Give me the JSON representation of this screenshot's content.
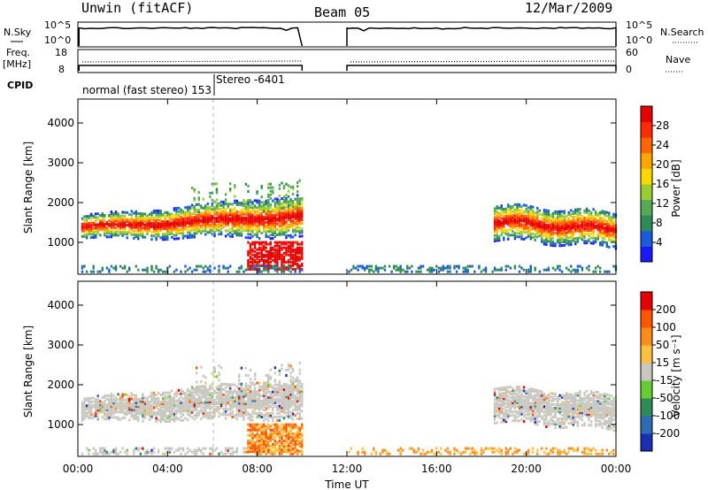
{
  "header": {
    "title_left": "Unwin (fitACF)",
    "title_center": "Beam 05",
    "title_right": "12/Mar/2009"
  },
  "strip": {
    "nsky_label": "N.Sky",
    "nsky_ticks": [
      "10^5",
      "10^0"
    ],
    "nsearch_label": "N.Search",
    "nsearch_ticks": [
      "10^5",
      "10^0"
    ],
    "freq_label": "Freq.",
    "freq_unit": "[MHz]",
    "freq_ticks": [
      "18",
      "8"
    ],
    "nave_label": "Nave",
    "nave_ticks": [
      "60",
      "0"
    ],
    "cpid_label": "CPID",
    "cpid_text": "normal (fast stereo) 153",
    "stereo_text": "Stereo -6401"
  },
  "chart_data": [
    {
      "type": "heatmap",
      "name": "power",
      "xlabel": "",
      "ylabel": "Slant Range [km]",
      "y_ticks": [
        "1000",
        "2000",
        "3000",
        "4000"
      ],
      "ylim": [
        200,
        4600
      ],
      "xlim": [
        0,
        24
      ],
      "gaps_hours": [
        [
          10,
          12
        ]
      ],
      "colorbar": {
        "label": "Power [dB]",
        "ticks": [
          "4",
          "8",
          "12",
          "16",
          "20",
          "24",
          "28"
        ],
        "colors": [
          "#1a1aff",
          "#1a5adc",
          "#2e8b57",
          "#55a855",
          "#9acd32",
          "#ffd700",
          "#ffa500",
          "#ff6600",
          "#ff2a00",
          "#e60000"
        ]
      }
    },
    {
      "type": "heatmap",
      "name": "velocity",
      "xlabel": "Time UT",
      "ylabel": "Slant Range [km]",
      "x_ticks": [
        "00:00",
        "04:00",
        "08:00",
        "12:00",
        "16:00",
        "20:00",
        "00:00"
      ],
      "y_ticks": [
        "1000",
        "2000",
        "3000",
        "4000"
      ],
      "ylim": [
        200,
        4600
      ],
      "xlim": [
        0,
        24
      ],
      "colorbar": {
        "label": "Velocity [m s⁻¹]",
        "ticks": [
          "200",
          "100",
          "50",
          "15",
          "-15",
          "-50",
          "-100",
          "-200"
        ],
        "colors": [
          "#1a2eb4",
          "#2e6bb4",
          "#2e8b57",
          "#66cc33",
          "#c8c8c0",
          "#ffbf3f",
          "#ff8c1a",
          "#ff5500",
          "#e60000"
        ]
      }
    }
  ]
}
